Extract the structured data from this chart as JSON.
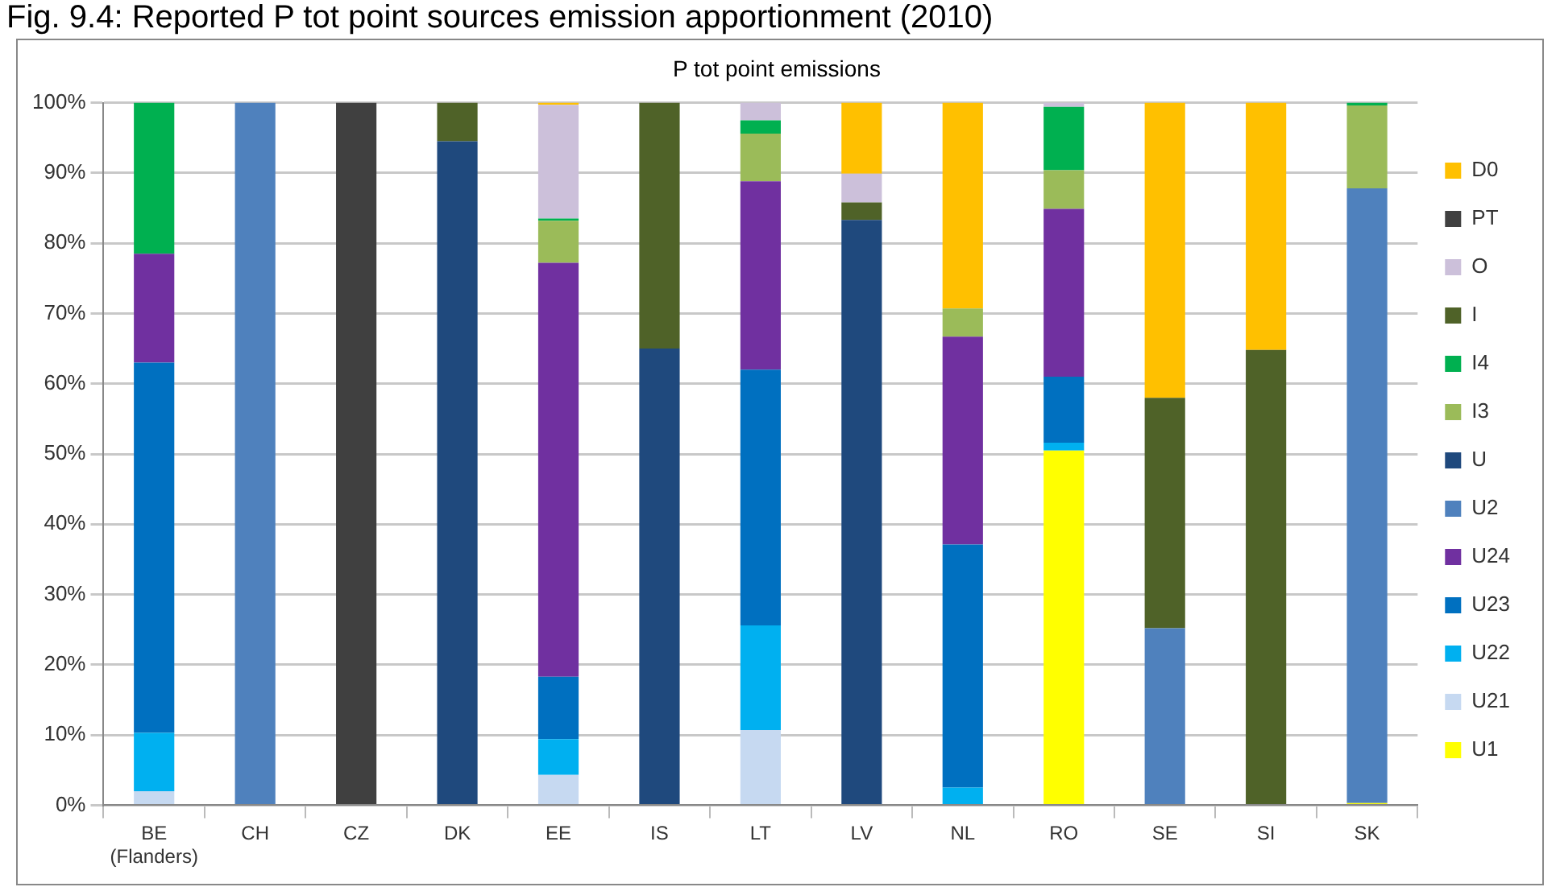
{
  "chart_data": {
    "type": "bar",
    "stacked": true,
    "title": "Fig. 9.4: Reported P tot point sources emission apportionment (2010)",
    "subtitle": "P tot point emissions",
    "categories": [
      "BE\n(Flanders)",
      "CH",
      "CZ",
      "DK",
      "EE",
      "IS",
      "LT",
      "LV",
      "NL",
      "RO",
      "SE",
      "SI",
      "SK"
    ],
    "series": [
      {
        "name": "U1",
        "color": "#ffff00",
        "values": [
          null,
          null,
          null,
          null,
          null,
          null,
          null,
          null,
          null,
          50.5,
          null,
          null,
          0.3
        ]
      },
      {
        "name": "U21",
        "color": "#c6d9f1",
        "values": [
          2,
          null,
          null,
          null,
          4.3,
          null,
          10.7,
          null,
          null,
          null,
          null,
          null,
          null
        ]
      },
      {
        "name": "U22",
        "color": "#00b0f0",
        "values": [
          8.3,
          null,
          null,
          null,
          5.1,
          null,
          14.9,
          null,
          2.5,
          1.1,
          null,
          null,
          null
        ]
      },
      {
        "name": "U23",
        "color": "#0070c0",
        "values": [
          52.7,
          null,
          null,
          null,
          8.9,
          null,
          36.4,
          null,
          34.6,
          9.4,
          null,
          null,
          null
        ]
      },
      {
        "name": "U24",
        "color": "#7030a0",
        "values": [
          15.5,
          null,
          null,
          null,
          58.9,
          null,
          26.8,
          null,
          29.6,
          23.9,
          null,
          null,
          null
        ]
      },
      {
        "name": "U2",
        "color": "#4f81bd",
        "values": [
          null,
          100,
          null,
          null,
          null,
          null,
          null,
          null,
          null,
          null,
          25.2,
          null,
          87.5
        ]
      },
      {
        "name": "U",
        "color": "#1f497d",
        "values": [
          null,
          null,
          null,
          94.5,
          null,
          65,
          null,
          83.3,
          null,
          null,
          null,
          null,
          null
        ]
      },
      {
        "name": "I3",
        "color": "#9bbb59",
        "values": [
          null,
          null,
          null,
          null,
          6,
          null,
          6.8,
          null,
          4,
          5.5,
          null,
          null,
          11.8
        ]
      },
      {
        "name": "I4",
        "color": "#00b050",
        "values": [
          21.5,
          null,
          null,
          null,
          0.3,
          null,
          1.9,
          null,
          null,
          9,
          null,
          null,
          0.4
        ]
      },
      {
        "name": "I",
        "color": "#4f6228",
        "values": [
          null,
          null,
          null,
          5.5,
          null,
          35,
          null,
          2.5,
          null,
          null,
          32.8,
          64.8,
          null
        ]
      },
      {
        "name": "O",
        "color": "#ccc0da",
        "values": [
          null,
          null,
          null,
          null,
          16.2,
          null,
          2.5,
          4.1,
          null,
          0.6,
          null,
          null,
          null
        ]
      },
      {
        "name": "PT",
        "color": "#404040",
        "values": [
          null,
          null,
          100,
          null,
          null,
          null,
          null,
          null,
          null,
          null,
          null,
          null,
          null
        ]
      },
      {
        "name": "D0",
        "color": "#ffc000",
        "values": [
          null,
          null,
          null,
          null,
          0.3,
          null,
          null,
          10.1,
          29.3,
          null,
          42,
          35.2,
          null
        ]
      }
    ],
    "ylim": [
      0,
      100
    ],
    "yticks": [
      {
        "value": 0,
        "label": "0%"
      },
      {
        "value": 10,
        "label": "10%"
      },
      {
        "value": 20,
        "label": "20%"
      },
      {
        "value": 30,
        "label": "30%"
      },
      {
        "value": 40,
        "label": "40%"
      },
      {
        "value": 50,
        "label": "50%"
      },
      {
        "value": 60,
        "label": "60%"
      },
      {
        "value": 70,
        "label": "70%"
      },
      {
        "value": 80,
        "label": "80%"
      },
      {
        "value": 90,
        "label": "90%"
      },
      {
        "value": 100,
        "label": "100%"
      }
    ],
    "grid": "y",
    "legend": "right"
  }
}
